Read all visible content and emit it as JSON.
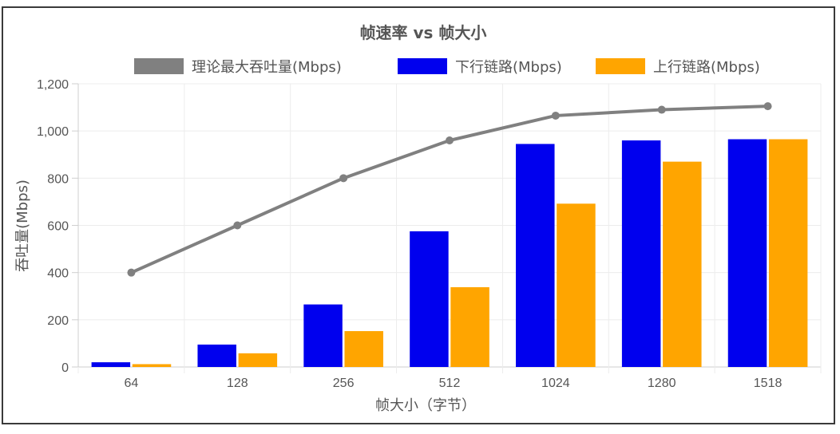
{
  "chart_data": {
    "type": "bar",
    "title": "帧速率 vs 帧大小",
    "xlabel": "帧大小（字节）",
    "ylabel": "吞吐量(Mbps)",
    "categories": [
      "64",
      "128",
      "256",
      "512",
      "1024",
      "1280",
      "1518"
    ],
    "ylim": [
      0,
      1200
    ],
    "yticks": [
      0,
      200,
      400,
      600,
      800,
      1000,
      1200
    ],
    "ytick_labels": [
      "0",
      "200",
      "400",
      "600",
      "800",
      "1,000",
      "1,200"
    ],
    "grid": true,
    "legend_position": "top",
    "series": [
      {
        "name": "理论最大吞吐量(Mbps)",
        "type": "line",
        "color": "#808080",
        "values": [
          400,
          600,
          800,
          960,
          1065,
          1090,
          1105
        ]
      },
      {
        "name": "下行链路(Mbps)",
        "type": "bar",
        "color": "#0000ee",
        "values": [
          20,
          95,
          265,
          575,
          945,
          960,
          965
        ]
      },
      {
        "name": "上行链路(Mbps)",
        "type": "bar",
        "color": "#ffa500",
        "values": [
          12,
          58,
          152,
          338,
          692,
          870,
          965
        ]
      }
    ]
  }
}
